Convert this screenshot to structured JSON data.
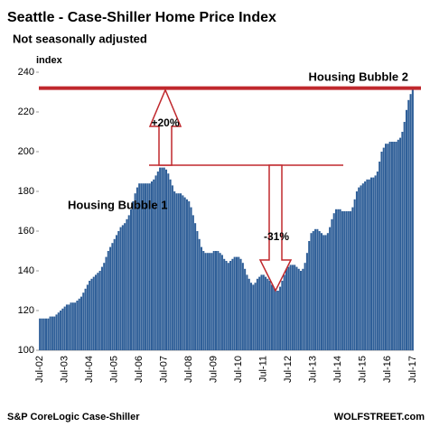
{
  "chart_data": {
    "type": "bar",
    "title": "Seattle - Case-Shiller Home Price Index",
    "subtitle": "Not seasonally adjusted",
    "y_axis_label": "index",
    "source": "S&P CoreLogic Case-Shiller",
    "credit": "WOLFSTREET.com",
    "color": "#2f5f98",
    "ylim": [
      100,
      240
    ],
    "yticks": [
      100,
      120,
      140,
      160,
      180,
      200,
      220,
      240
    ],
    "annotations": {
      "bubble_1": "Housing Bubble 1",
      "bubble_2": "Housing Bubble 2",
      "rise": "+20%",
      "fall": "-31%",
      "reference_line": 232
    },
    "categories": [
      "Jul-02",
      null,
      null,
      null,
      null,
      null,
      null,
      null,
      null,
      null,
      null,
      null,
      "Jul-03",
      null,
      null,
      null,
      null,
      null,
      null,
      null,
      null,
      null,
      null,
      null,
      "Jul-04",
      null,
      null,
      null,
      null,
      null,
      null,
      null,
      null,
      null,
      null,
      null,
      "Jul-05",
      null,
      null,
      null,
      null,
      null,
      null,
      null,
      null,
      null,
      null,
      null,
      "Jul-06",
      null,
      null,
      null,
      null,
      null,
      null,
      null,
      null,
      null,
      null,
      null,
      "Jul-07",
      null,
      null,
      null,
      null,
      null,
      null,
      null,
      null,
      null,
      null,
      null,
      "Jul-08",
      null,
      null,
      null,
      null,
      null,
      null,
      null,
      null,
      null,
      null,
      null,
      "Jul-09",
      null,
      null,
      null,
      null,
      null,
      null,
      null,
      null,
      null,
      null,
      null,
      "Jul-10",
      null,
      null,
      null,
      null,
      null,
      null,
      null,
      null,
      null,
      null,
      null,
      "Jul-11",
      null,
      null,
      null,
      null,
      null,
      null,
      null,
      null,
      null,
      null,
      null,
      "Jul-12",
      null,
      null,
      null,
      null,
      null,
      null,
      null,
      null,
      null,
      null,
      null,
      "Jul-13",
      null,
      null,
      null,
      null,
      null,
      null,
      null,
      null,
      null,
      null,
      null,
      "Jul-14",
      null,
      null,
      null,
      null,
      null,
      null,
      null,
      null,
      null,
      null,
      null,
      "Jul-15",
      null,
      null,
      null,
      null,
      null,
      null,
      null,
      null,
      null,
      null,
      null,
      "Jul-16",
      null,
      null,
      null,
      null,
      null,
      null,
      null,
      null,
      null,
      null,
      null,
      "Jul-17"
    ],
    "values": [
      116,
      116,
      116,
      116,
      116,
      117,
      117,
      117,
      118,
      119,
      120,
      121,
      122,
      123,
      123,
      124,
      124,
      124,
      125,
      126,
      127,
      129,
      131,
      133,
      135,
      136,
      137,
      138,
      139,
      140,
      142,
      144,
      147,
      150,
      152,
      154,
      156,
      158,
      160,
      162,
      163,
      164,
      166,
      168,
      171,
      175,
      179,
      182,
      184,
      184,
      184,
      184,
      184,
      184,
      185,
      186,
      188,
      190,
      192,
      192,
      192,
      191,
      189,
      186,
      183,
      180,
      179,
      179,
      179,
      178,
      177,
      176,
      175,
      172,
      168,
      164,
      160,
      156,
      152,
      150,
      149,
      149,
      149,
      149,
      150,
      150,
      150,
      149,
      148,
      146,
      145,
      144,
      145,
      146,
      147,
      147,
      147,
      146,
      144,
      141,
      138,
      136,
      134,
      133,
      134,
      136,
      137,
      138,
      138,
      137,
      136,
      135,
      133,
      132,
      130,
      130,
      132,
      135,
      138,
      141,
      142,
      143,
      143,
      143,
      142,
      141,
      140,
      141,
      144,
      149,
      155,
      159,
      160,
      161,
      161,
      160,
      159,
      158,
      158,
      159,
      162,
      166,
      169,
      171,
      171,
      171,
      170,
      170,
      170,
      170,
      170,
      172,
      176,
      180,
      182,
      183,
      184,
      185,
      186,
      186,
      187,
      187,
      188,
      190,
      195,
      200,
      202,
      204,
      204,
      205,
      205,
      205,
      205,
      206,
      207,
      210,
      215,
      221,
      226,
      229,
      232
    ]
  }
}
